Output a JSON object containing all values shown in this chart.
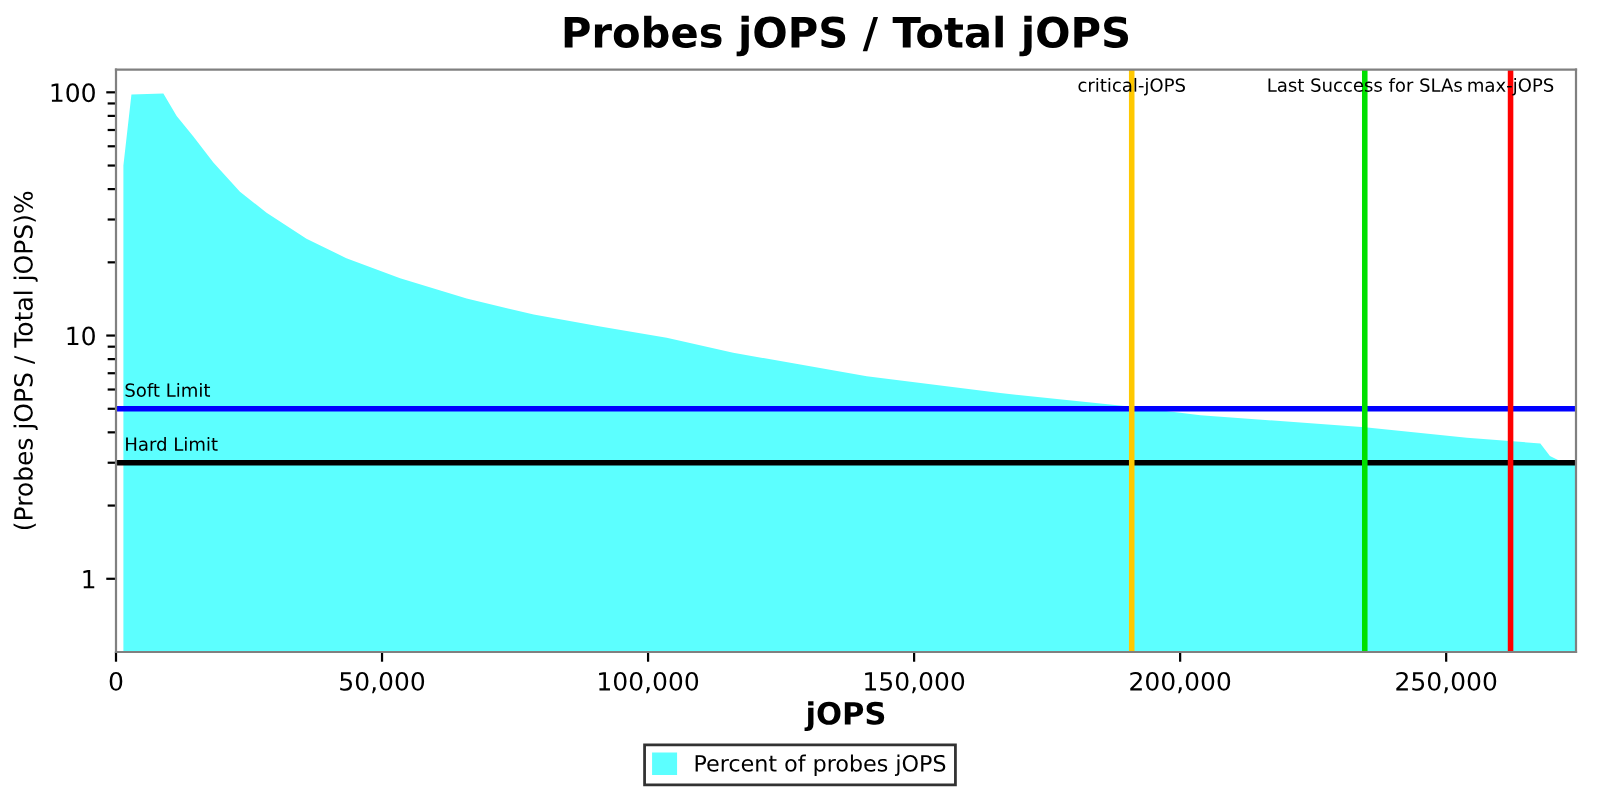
{
  "chart_data": {
    "type": "area",
    "title": "Probes jOPS / Total jOPS",
    "xlabel": "jOPS",
    "ylabel": "(Probes jOPS / Total jOPS)%",
    "series": [
      {
        "name": "Percent of probes jOPS",
        "color": "#5cffff",
        "x": [
          1390,
          2900,
          8900,
          11400,
          14500,
          18300,
          23300,
          28300,
          35800,
          43300,
          53400,
          65900,
          78500,
          91000,
          103500,
          116000,
          128600,
          141100,
          166200,
          190900,
          203800,
          234700,
          253900,
          267700,
          269500,
          271400,
          274400
        ],
        "values": [
          50,
          98,
          99,
          80,
          66,
          51.5,
          39,
          32,
          25,
          20.8,
          17.2,
          14.2,
          12.2,
          10.9,
          9.8,
          8.5,
          7.6,
          6.8,
          5.8,
          5.1,
          4.7,
          4.2,
          3.8,
          3.6,
          3.2,
          3.05,
          3.0
        ]
      }
    ],
    "log": true,
    "xlim": [
      0,
      274400
    ],
    "ylim": [
      0.5,
      124
    ],
    "xticks": [
      0,
      {
        "value": 50000,
        "label": "50,000"
      },
      {
        "value": 100000,
        "label": "100,000"
      },
      {
        "value": 150000,
        "label": "150,000"
      },
      {
        "value": 200000,
        "label": "200,000"
      },
      {
        "value": 250000,
        "label": "250,000"
      }
    ],
    "yticks": [
      1,
      {
        "value": 2,
        "label": null
      },
      {
        "value": 3,
        "label": null
      },
      {
        "value": 4,
        "label": null
      },
      {
        "value": 5,
        "label": null
      },
      {
        "value": 6,
        "label": null
      },
      {
        "value": 7,
        "label": null
      },
      {
        "value": 8,
        "label": null
      },
      {
        "value": 9,
        "label": null
      },
      10,
      {
        "value": 20,
        "label": null
      },
      {
        "value": 30,
        "label": null
      },
      {
        "value": 40,
        "label": null
      },
      {
        "value": 50,
        "label": null
      },
      {
        "value": 60,
        "label": null
      },
      {
        "value": 70,
        "label": null
      },
      {
        "value": 80,
        "label": null
      },
      {
        "value": 90,
        "label": null
      },
      100
    ],
    "ref_lines": [
      {
        "axis": "y",
        "value": 5,
        "label": "Soft Limit",
        "color": "#0000ff"
      },
      {
        "axis": "y",
        "value": 3,
        "label": "Hard Limit",
        "color": "#000000"
      },
      {
        "axis": "x",
        "value": 190900,
        "label": "critical-jOPS",
        "color": "#ffc800"
      },
      {
        "axis": "x",
        "value": 234700,
        "label": "Last Success for SLAs",
        "color": "#00e000"
      },
      {
        "axis": "x",
        "value": 262100,
        "label": "max-jOPS",
        "color": "#ff0000"
      }
    ],
    "grid": false,
    "legend": "bottom"
  }
}
